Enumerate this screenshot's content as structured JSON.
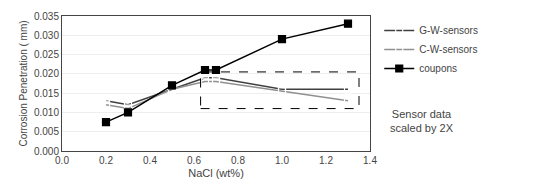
{
  "chart_data": {
    "type": "line",
    "x": [
      0.2,
      0.3,
      0.5,
      0.65,
      0.7,
      1.0,
      1.3
    ],
    "series": [
      {
        "name": "G-W-sensors",
        "color": "#404040",
        "marker": "square-open",
        "line_style": "solid",
        "values": [
          0.013,
          0.012,
          0.016,
          0.019,
          0.019,
          0.016,
          0.016
        ]
      },
      {
        "name": "C-W-sensors",
        "color": "#909090",
        "marker": "square-open",
        "line_style": "solid",
        "values": [
          0.012,
          0.011,
          0.016,
          0.018,
          0.018,
          0.0155,
          0.013
        ]
      },
      {
        "name": "coupons",
        "color": "#000000",
        "marker": "square",
        "line_style": "solid",
        "values": [
          0.0075,
          0.01,
          0.017,
          0.021,
          0.021,
          0.029,
          0.033
        ]
      }
    ],
    "box": {
      "x": [
        0.63,
        1.35
      ],
      "y": [
        0.011,
        0.0205
      ],
      "color": "#000000",
      "line_style": "dash"
    },
    "xlabel": "NaCl (wt%)",
    "ylabel": "Corrosion Penetration ( mm)",
    "annotation": "Sensor data\nscaled by 2X",
    "xlim": [
      0,
      1.4
    ],
    "ylim": [
      0,
      0.035
    ],
    "xticks": [
      {
        "value": 0,
        "label": "0.0"
      },
      0.2,
      0.4,
      0.6,
      0.8,
      {
        "value": 1.0,
        "label": "1.0"
      },
      1.2,
      1.4
    ],
    "yticks": [
      {
        "value": 0,
        "label": "0.000"
      },
      0.005,
      {
        "value": 0.01,
        "label": "0.010"
      },
      0.015,
      {
        "value": 0.02,
        "label": "0.020"
      },
      0.025,
      {
        "value": 0.03,
        "label": "0.030"
      },
      0.035
    ],
    "grid": "y",
    "legend": "upper right"
  }
}
